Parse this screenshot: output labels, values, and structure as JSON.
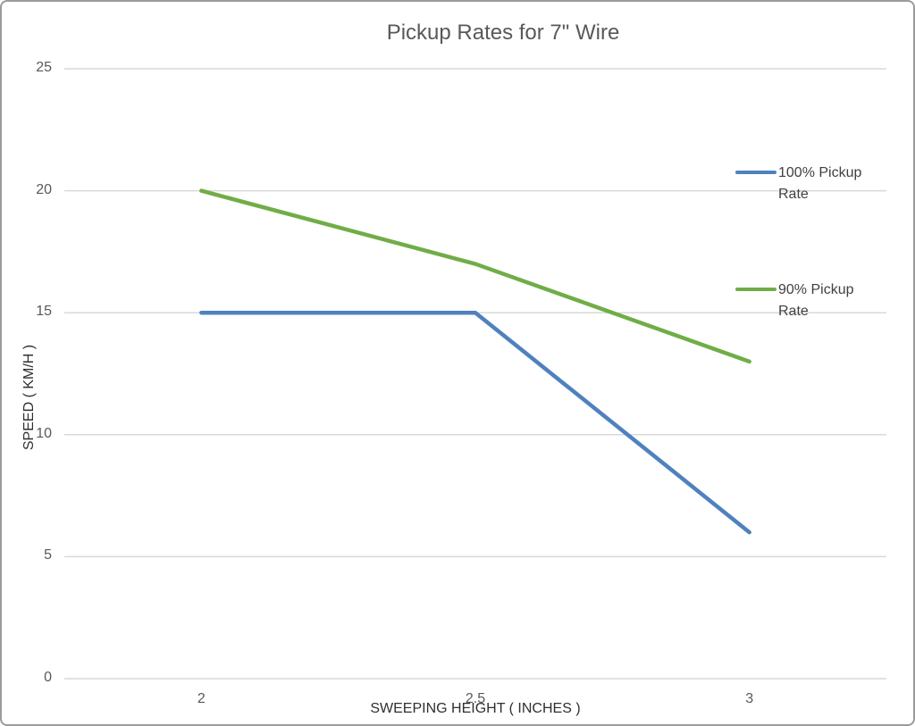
{
  "chart_data": {
    "type": "line",
    "title": "Pickup Rates for 7\" Wire",
    "xlabel": "SWEEPING HEIGHT ( INCHES )",
    "ylabel": "SPEED ( KM/H )",
    "categories": [
      "2",
      "2.5",
      "3"
    ],
    "series": [
      {
        "name": "100% Pickup Rate",
        "values": [
          15,
          15,
          6
        ],
        "color": "#4f81bd"
      },
      {
        "name": "90% Pickup Rate",
        "values": [
          20,
          17,
          13
        ],
        "color": "#70ad47"
      }
    ],
    "ylim": [
      0,
      25
    ],
    "ytick_step": 5,
    "grid": "horizontal",
    "legend_position": "right"
  },
  "colors": {
    "background": "#ffffff",
    "frame_border": "#9b9b9b",
    "grid": "#d9d9d9",
    "title_text": "#595959",
    "tick_text": "#595959",
    "axis_title_text": "#2f2f2f",
    "legend_text": "#404040"
  }
}
